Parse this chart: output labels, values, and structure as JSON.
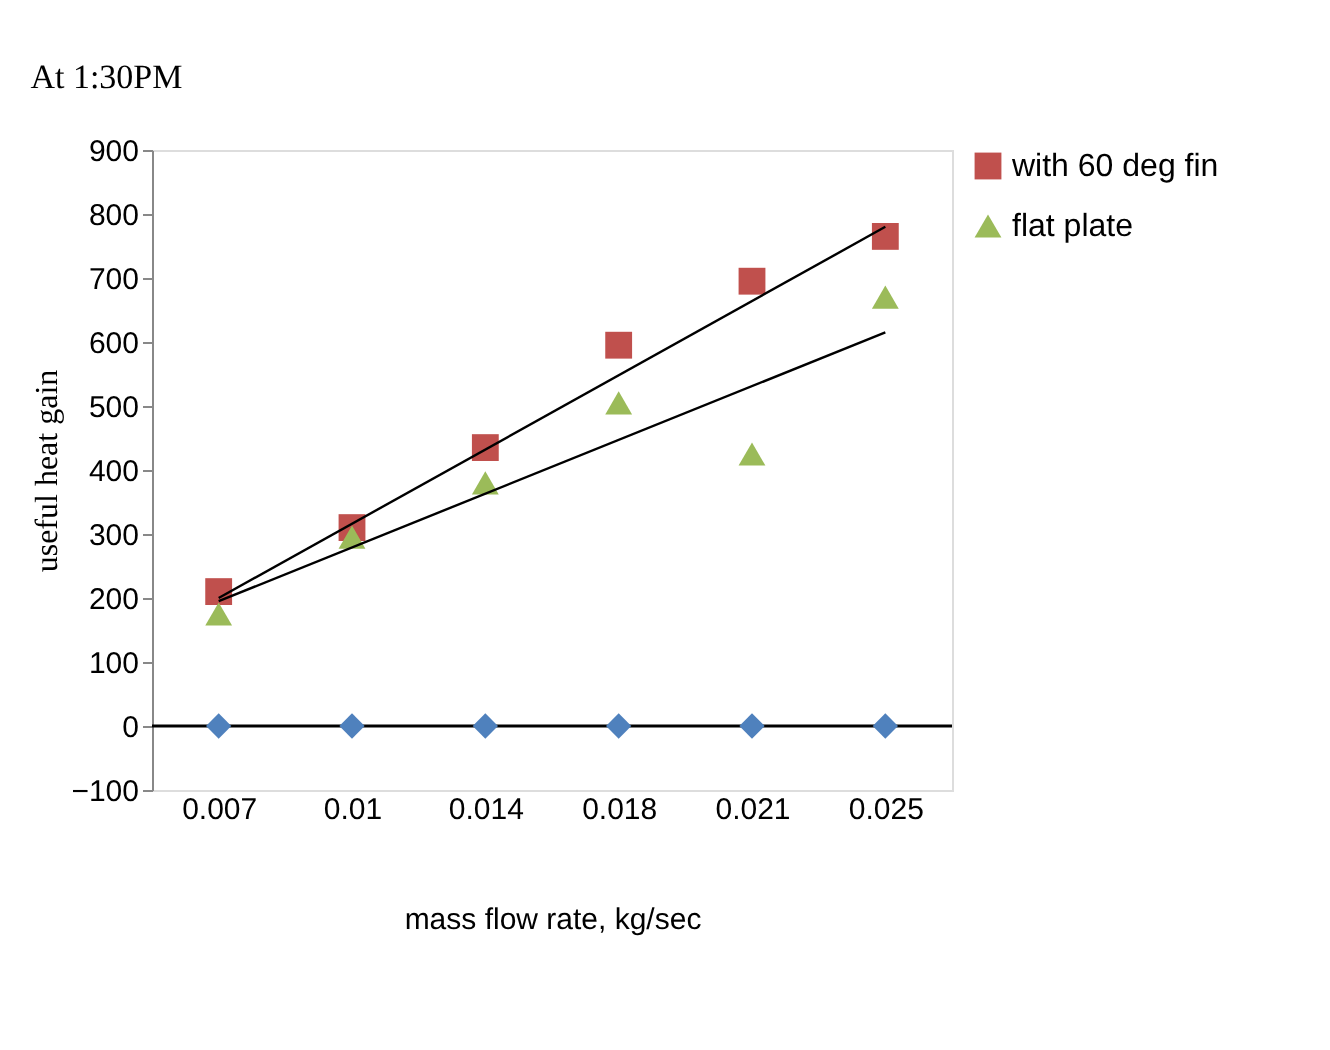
{
  "chart_data": {
    "type": "scatter",
    "title": "At 1:30PM",
    "xlabel": "mass flow rate, kg/sec",
    "ylabel": "useful heat gain",
    "categories": [
      "0.007",
      "0.01",
      "0.014",
      "0.018",
      "0.021",
      "0.025"
    ],
    "series": [
      {
        "color": "#4f81bd",
        "marker": "diamond",
        "values": [
          0,
          0,
          0,
          0,
          0,
          0
        ]
      },
      {
        "name": "with 60 deg fin",
        "color": "#c0504d",
        "marker": "square",
        "values": [
          210,
          310,
          435,
          595,
          695,
          765
        ]
      },
      {
        "name": "flat plate",
        "color": "#9bbb59",
        "marker": "triangle",
        "values": [
          175,
          295,
          380,
          505,
          425,
          670
        ]
      },
      {
        "type": "line",
        "color": "#000000",
        "line_style": "solid",
        "x": [
          "0.007",
          "0.025"
        ],
        "values": [
          200,
          780
        ]
      },
      {
        "type": "line",
        "color": "#000000",
        "line_style": "solid",
        "x": [
          "0.007",
          "0.025"
        ],
        "values": [
          195,
          615
        ]
      }
    ],
    "ylim": [
      -100,
      900
    ],
    "yticks": [
      -100,
      0,
      100,
      200,
      300,
      400,
      500,
      600,
      700,
      800,
      900
    ],
    "ref_lines": [
      {
        "axis": "y",
        "value": 0,
        "color": "#000000"
      }
    ],
    "grid": false,
    "legend": "top right"
  }
}
